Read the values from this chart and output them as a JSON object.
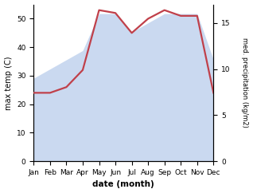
{
  "months": [
    "Jan",
    "Feb",
    "Mar",
    "Apr",
    "May",
    "Jun",
    "Jul",
    "Aug",
    "Sep",
    "Oct",
    "Nov",
    "Dec"
  ],
  "month_indices": [
    0,
    1,
    2,
    3,
    4,
    5,
    6,
    7,
    8,
    9,
    10,
    11
  ],
  "temp": [
    24,
    24,
    26,
    32,
    53,
    52,
    45,
    50,
    53,
    51,
    51,
    24
  ],
  "precip": [
    9,
    10,
    11,
    12,
    16,
    16,
    14,
    15,
    16,
    16,
    16,
    11
  ],
  "temp_ylim": [
    0,
    55
  ],
  "precip_ylim": [
    0,
    17
  ],
  "temp_yticks": [
    0,
    10,
    20,
    30,
    40,
    50
  ],
  "precip_yticks": [
    0,
    5,
    10,
    15
  ],
  "fill_color": "#aec6e8",
  "fill_alpha": 0.65,
  "line_color": "#c0404a",
  "line_width": 1.6,
  "xlabel": "date (month)",
  "ylabel_left": "max temp (C)",
  "ylabel_right": "med. precipitation (kg/m2)",
  "bg_color": "#ffffff",
  "ylabel_left_fontsize": 7,
  "ylabel_right_fontsize": 6,
  "xlabel_fontsize": 7.5,
  "tick_fontsize": 6.5
}
